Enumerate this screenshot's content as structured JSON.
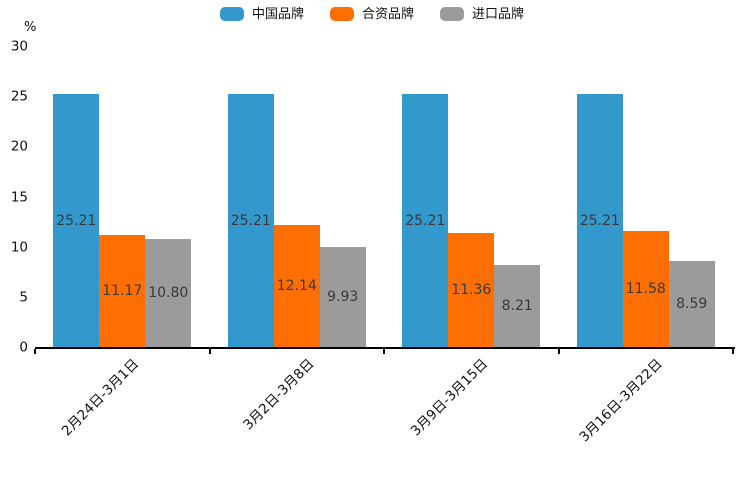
{
  "chart_data": {
    "type": "bar",
    "title": "",
    "ylabel": "%",
    "xlabel": "",
    "ylim": [
      0,
      30
    ],
    "yticks": [
      0,
      5,
      10,
      15,
      20,
      25,
      30
    ],
    "grid": false,
    "legend_position": "top",
    "xtick_rotation": 45,
    "value_labels": true,
    "categories": [
      "2月24日-3月1日",
      "3月2日-3月8日",
      "3月9日-3月15日",
      "3月16日-3月22日"
    ],
    "series": [
      {
        "name": "中国品牌",
        "color": "#3398CB",
        "values": [
          25.21,
          25.21,
          25.21,
          25.21
        ]
      },
      {
        "name": "合资品牌",
        "color": "#FF6E00",
        "values": [
          11.17,
          12.14,
          11.36,
          11.58
        ]
      },
      {
        "name": "进口品牌",
        "color": "#9B9B9B",
        "values": [
          10.8,
          9.93,
          8.21,
          8.59
        ]
      }
    ]
  },
  "colors": {
    "axis": "#000000",
    "tick_text": "#111111",
    "value_label_text": "#3a3a3a",
    "background": "#ffffff"
  }
}
